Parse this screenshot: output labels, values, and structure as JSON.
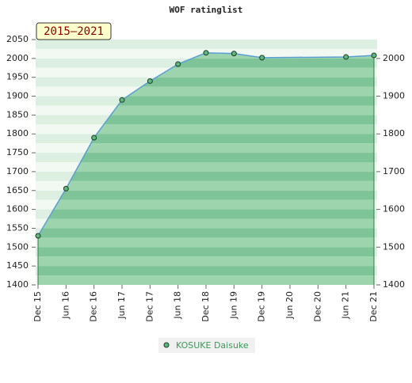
{
  "chart_data": {
    "type": "line",
    "title": "WOF ratinglist",
    "annotation": "2015–2021",
    "x": [
      0,
      6,
      12,
      18,
      24,
      30,
      36,
      42,
      48,
      66,
      72
    ],
    "xlim": [
      0,
      72
    ],
    "xticks": [
      {
        "value": 0,
        "label": "Dec 15"
      },
      {
        "value": 6,
        "label": "Jun 16"
      },
      {
        "value": 12,
        "label": "Dec 16"
      },
      {
        "value": 18,
        "label": "Jun 17"
      },
      {
        "value": 24,
        "label": "Dec 17"
      },
      {
        "value": 30,
        "label": "Jun 18"
      },
      {
        "value": 36,
        "label": "Dec 18"
      },
      {
        "value": 42,
        "label": "Jun 19"
      },
      {
        "value": 48,
        "label": "Dec 19"
      },
      {
        "value": 54,
        "label": "Jun 20"
      },
      {
        "value": 60,
        "label": "Dec 20"
      },
      {
        "value": 66,
        "label": "Jun 21"
      },
      {
        "value": 72,
        "label": "Dec 21"
      }
    ],
    "series": [
      {
        "name": "KOSUKE Daisuke",
        "color": "#5cb87a",
        "line_color": "#5a9fd4",
        "values": [
          1530,
          1655,
          1790,
          1890,
          1940,
          1985,
          2015,
          2013,
          2002,
          2004,
          2008
        ]
      }
    ],
    "ylim": [
      1400,
      2050
    ],
    "yticks": [
      1400,
      1450,
      1500,
      1550,
      1600,
      1650,
      1700,
      1750,
      1800,
      1850,
      1900,
      1950,
      2000,
      2050
    ],
    "y2lim": [
      1400,
      2050
    ],
    "y2ticks": [
      1400,
      1500,
      1600,
      1700,
      1800,
      1900,
      2000
    ],
    "legend": "bottom"
  }
}
